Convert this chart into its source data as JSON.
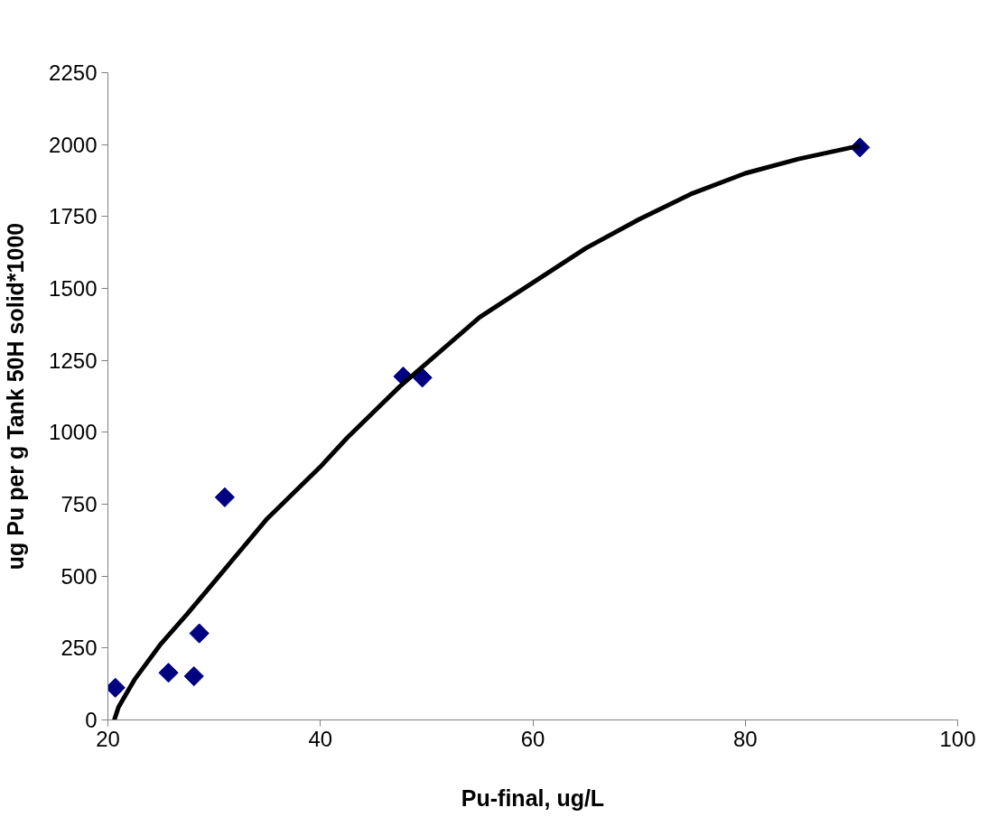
{
  "chart_data": {
    "type": "scatter",
    "xlabel": "Pu-final, ug/L",
    "ylabel": "ug Pu per g Tank 50H solid*1000",
    "xlim": [
      20,
      100
    ],
    "xticks": [
      20,
      40,
      60,
      80,
      100
    ],
    "ylim": [
      0,
      2250
    ],
    "yticks": [
      0,
      250,
      500,
      750,
      1000,
      1250,
      1500,
      1750,
      2000,
      2250
    ],
    "grid": false,
    "series": [
      {
        "marker": "diamond",
        "color": "#000080",
        "x": [
          20.7,
          25.7,
          28.1,
          28.6,
          31.0,
          47.8,
          49.6,
          90.8
        ],
        "values": [
          112,
          164,
          152,
          301,
          774,
          1194,
          1190,
          1990
        ]
      },
      {
        "type": "line",
        "marker": "none",
        "line_style": "solid",
        "color": "#000000",
        "x": [
          20.6,
          21,
          22.5,
          25,
          27.5,
          30,
          32.5,
          35,
          37.5,
          40,
          42.5,
          45,
          47.5,
          50,
          55,
          60,
          65,
          70,
          75,
          80,
          85,
          90,
          90.8
        ],
        "values": [
          0,
          45,
          140,
          265,
          370,
          480,
          590,
          700,
          790,
          880,
          980,
          1070,
          1160,
          1240,
          1400,
          1520,
          1640,
          1740,
          1830,
          1900,
          1950,
          1990,
          1995
        ]
      }
    ]
  }
}
